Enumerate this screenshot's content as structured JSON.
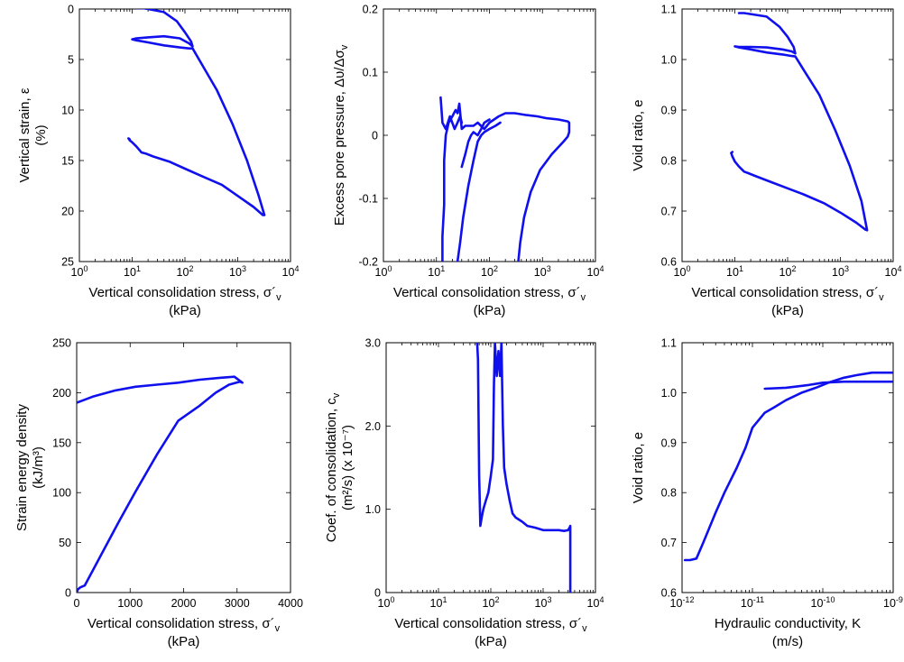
{
  "chart_data": [
    {
      "type": "line",
      "xlabel_line1": "Vertical consolidation stress, σ´",
      "xlabel_sub": "v",
      "xlabel_line2": "(kPa)",
      "ylabel_line1": "Vertical strain, ε",
      "ylabel_line2": "(%)",
      "xscale": "log",
      "xlim": [
        1,
        10000
      ],
      "ylim": [
        25,
        0
      ],
      "yinvert": true,
      "yticks": [
        "0",
        "5",
        "10",
        "15",
        "20",
        "25"
      ],
      "xticks": [
        "10^0",
        "10^1",
        "10^2",
        "10^3",
        "10^4"
      ],
      "series": [
        {
          "x": [
            12,
            15,
            20,
            40,
            70,
            100,
            130,
            140,
            120,
            80,
            40,
            20,
            12,
            10,
            12,
            20,
            40,
            80,
            120,
            140,
            200,
            400,
            800,
            1500,
            2500,
            3200,
            3000,
            2000,
            1000,
            500,
            200,
            100,
            50,
            25,
            18,
            15,
            12,
            10,
            9,
            8.5,
            9
          ],
          "y": [
            -0.1,
            -0.1,
            0,
            0.3,
            1.2,
            2.3,
            3.2,
            3.7,
            3.4,
            2.9,
            2.7,
            2.8,
            2.9,
            3.0,
            3.1,
            3.3,
            3.6,
            3.8,
            3.9,
            3.9,
            5.3,
            8,
            11.4,
            15,
            18.5,
            20.4,
            20.4,
            19.6,
            18.5,
            17.4,
            16.5,
            15.8,
            15.1,
            14.6,
            14.3,
            14.2,
            13.6,
            13.2,
            13,
            12.8,
            12.9
          ]
        }
      ]
    },
    {
      "type": "line",
      "xlabel_line1": "Vertical consolidation stress, σ´",
      "xlabel_sub": "v",
      "xlabel_line2": "(kPa)",
      "ylabel_line1": "Excess pore pressure, Δυ/Δσ",
      "ylabel_sub": "v",
      "xscale": "log",
      "xlim": [
        1,
        10000
      ],
      "ylim": [
        -0.2,
        0.2
      ],
      "yticks": [
        "-0.2",
        "-0.1",
        "0",
        "0.1",
        "0.2"
      ],
      "xticks": [
        "10^0",
        "10^1",
        "10^2",
        "10^3",
        "10^4"
      ],
      "series": [
        {
          "x": [
            13,
            13,
            14,
            14,
            15,
            17,
            20,
            23,
            25,
            27,
            30,
            35,
            40,
            50,
            60,
            80,
            100,
            150,
            200,
            300,
            500,
            800,
            1200,
            2000,
            3000,
            3200,
            3200,
            3000,
            2500,
            1500,
            900,
            600,
            450,
            380,
            350
          ],
          "y": [
            -0.2,
            -0.16,
            -0.11,
            -0.04,
            0.0,
            0.02,
            0.03,
            0.04,
            0.035,
            0.05,
            0.01,
            0.015,
            0.015,
            0.015,
            0.02,
            0.01,
            0.02,
            0.03,
            0.035,
            0.035,
            0.032,
            0.03,
            0.027,
            0.025,
            0.022,
            0.02,
            0.005,
            -0.002,
            -0.01,
            -0.03,
            -0.055,
            -0.09,
            -0.13,
            -0.17,
            -0.2
          ]
        },
        {
          "x": [
            12,
            12.5,
            13,
            15,
            18,
            22,
            25,
            28,
            30
          ],
          "y": [
            0.06,
            0.04,
            0.02,
            0.01,
            0.03,
            0.01,
            0.02,
            0.03,
            0.02
          ]
        },
        {
          "x": [
            25,
            28,
            32,
            40,
            50,
            60,
            70,
            80,
            100,
            130,
            160
          ],
          "y": [
            -0.2,
            -0.17,
            -0.13,
            -0.08,
            -0.04,
            -0.01,
            0.0,
            0.005,
            0.01,
            0.015,
            0.02
          ]
        },
        {
          "x": [
            30,
            35,
            40,
            45,
            50,
            60,
            70,
            80,
            100
          ],
          "y": [
            -0.05,
            -0.03,
            -0.01,
            0.0,
            0.005,
            0.0,
            0.01,
            0.02,
            0.025
          ]
        }
      ]
    },
    {
      "type": "line",
      "xlabel_line1": "Vertical consolidation stress, σ´",
      "xlabel_sub": "v",
      "xlabel_line2": "(kPa)",
      "ylabel_line1": "Void ratio, e",
      "xscale": "log",
      "xlim": [
        1,
        10000
      ],
      "ylim": [
        0.6,
        1.1
      ],
      "yticks": [
        "0.6",
        "0.7",
        "0.8",
        "0.9",
        "1.0",
        "1.1"
      ],
      "xticks": [
        "10^0",
        "10^1",
        "10^2",
        "10^3",
        "10^4"
      ],
      "series": [
        {
          "x": [
            12,
            15,
            20,
            40,
            70,
            100,
            130,
            140,
            120,
            80,
            40,
            20,
            12,
            10,
            12,
            20,
            40,
            80,
            120,
            140,
            200,
            400,
            800,
            1500,
            2500,
            3200,
            3000,
            2000,
            1000,
            500,
            200,
            100,
            50,
            25,
            18,
            15,
            12,
            10,
            9,
            8.5,
            9
          ],
          "y": [
            1.092,
            1.092,
            1.09,
            1.085,
            1.065,
            1.045,
            1.025,
            1.012,
            1.016,
            1.02,
            1.024,
            1.025,
            1.025,
            1.026,
            1.024,
            1.02,
            1.014,
            1.01,
            1.007,
            1.006,
            0.98,
            0.93,
            0.86,
            0.79,
            0.72,
            0.662,
            0.663,
            0.677,
            0.697,
            0.715,
            0.733,
            0.745,
            0.757,
            0.769,
            0.775,
            0.778,
            0.788,
            0.798,
            0.808,
            0.815,
            0.817
          ]
        }
      ]
    },
    {
      "type": "line",
      "xlabel_line1": "Vertical consolidation stress, σ´",
      "xlabel_sub": "v",
      "xlabel_line2": "(kPa)",
      "ylabel_line1": "Strain energy density",
      "ylabel_line2": "(kJ/m³)",
      "xscale": "linear",
      "xlim": [
        0,
        4000
      ],
      "ylim": [
        0,
        250
      ],
      "yticks": [
        "0",
        "50",
        "100",
        "150",
        "200",
        "250"
      ],
      "xticks": [
        "0",
        "1000",
        "2000",
        "3000",
        "4000"
      ],
      "series": [
        {
          "x": [
            0,
            20,
            60,
            100,
            150,
            300,
            500,
            800,
            1100,
            1500,
            1900,
            2300,
            2600,
            2850,
            3050,
            3100,
            2950,
            2700,
            2300,
            1900,
            1500,
            1100,
            700,
            300,
            100,
            0
          ],
          "y": [
            0,
            3,
            5,
            6,
            7,
            22,
            42,
            72,
            101,
            138,
            172,
            187,
            200,
            208,
            211,
            210,
            216,
            215,
            213,
            210,
            208,
            206,
            202,
            196,
            192,
            190
          ]
        }
      ]
    },
    {
      "type": "line",
      "xlabel_line1": "Vertical consolidation stress, σ´",
      "xlabel_sub": "v",
      "xlabel_line2": "(kPa)",
      "ylabel_line1": "Coef. of consolidation, c",
      "ylabel_sub": "v",
      "ylabel_line2": "(m²/s) (x 10⁻⁷)",
      "xscale": "log",
      "xlim": [
        1,
        10000
      ],
      "ylim": [
        0,
        3
      ],
      "yticks": [
        "0",
        "1.0",
        "2.0",
        "3.0"
      ],
      "xticks": [
        "10^0",
        "10^1",
        "10^2",
        "10^3",
        "10^4"
      ],
      "series": [
        {
          "x": [
            55,
            57,
            60,
            63,
            67,
            72,
            80,
            90,
            100,
            110,
            115,
            120,
            130,
            140,
            150,
            160,
            170,
            180,
            200,
            230,
            260,
            300,
            400,
            500,
            700,
            1000,
            1500,
            2000,
            2500,
            3000,
            3200,
            3300,
            3300
          ],
          "y": [
            3.0,
            2.8,
            1.4,
            0.8,
            0.9,
            1.0,
            1.1,
            1.2,
            1.4,
            1.6,
            2.5,
            3.0,
            2.6,
            2.9,
            2.6,
            3.0,
            2.0,
            1.5,
            1.3,
            1.1,
            0.95,
            0.9,
            0.85,
            0.8,
            0.78,
            0.75,
            0.75,
            0.75,
            0.74,
            0.75,
            0.78,
            0.8,
            0
          ]
        }
      ]
    },
    {
      "type": "line",
      "xlabel_line1": "Hydraulic conductivity, K",
      "xlabel_line2": "(m/s)",
      "ylabel_line1": "Void ratio, e",
      "xscale": "log",
      "xlim": [
        1e-12,
        1e-09
      ],
      "ylim": [
        0.6,
        1.1
      ],
      "yticks": [
        "0.6",
        "0.7",
        "0.8",
        "0.9",
        "1.0",
        "1.1"
      ],
      "xticks": [
        "10^-12",
        "10^-11",
        "10^-10",
        "10^-9"
      ],
      "series": [
        {
          "x": [
            1.1e-12,
            1.3e-12,
            1.6e-12,
            2e-12,
            3e-12,
            4e-12,
            6e-12,
            8e-12,
            1e-11,
            1.5e-11,
            2e-11,
            3e-11,
            5e-11,
            8e-11,
            1.2e-10,
            2e-10,
            3e-10,
            5e-10,
            1e-09
          ],
          "y": [
            0.665,
            0.665,
            0.668,
            0.7,
            0.76,
            0.8,
            0.85,
            0.89,
            0.93,
            0.96,
            0.97,
            0.985,
            1.0,
            1.01,
            1.02,
            1.03,
            1.035,
            1.04,
            1.04
          ]
        },
        {
          "x": [
            1.5e-11,
            3e-11,
            6e-11,
            1e-10,
            2e-10,
            5e-10,
            1e-09
          ],
          "y": [
            1.008,
            1.01,
            1.015,
            1.02,
            1.022,
            1.022,
            1.022
          ]
        }
      ]
    }
  ]
}
